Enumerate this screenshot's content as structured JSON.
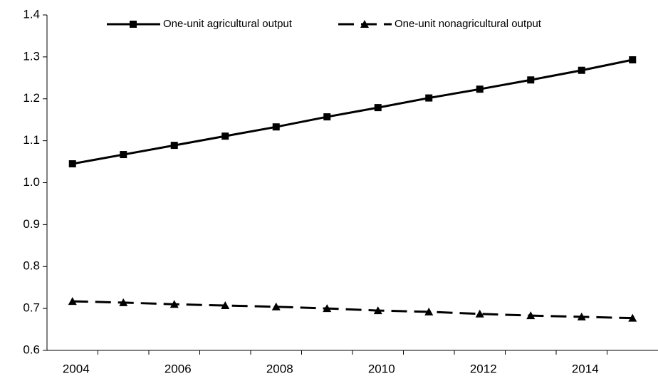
{
  "chart_data": {
    "type": "line",
    "categories": [
      "2004",
      null,
      "2006",
      null,
      "2008",
      null,
      "2010",
      null,
      "2012",
      null,
      "2014",
      null
    ],
    "series": [
      {
        "name": "One-unit agricultural output",
        "color": "#000000",
        "marker": "square",
        "dashed": false,
        "values": [
          1.045,
          1.067,
          1.089,
          1.111,
          1.133,
          1.157,
          1.179,
          1.202,
          1.223,
          1.245,
          1.268,
          1.293
        ]
      },
      {
        "name": "One-unit nonagricultural output",
        "color": "#000000",
        "marker": "triangle",
        "dashed": true,
        "values": [
          0.717,
          0.714,
          0.71,
          0.707,
          0.704,
          0.7,
          0.695,
          0.692,
          0.687,
          0.683,
          0.68,
          0.677
        ]
      }
    ],
    "ylim": [
      0.6,
      1.4
    ],
    "yticks": [
      0.6,
      0.7,
      0.8,
      0.9,
      {
        "value": 1.0,
        "label": "1.0"
      },
      1.1,
      1.2,
      1.3,
      1.4
    ],
    "legend": "top"
  }
}
